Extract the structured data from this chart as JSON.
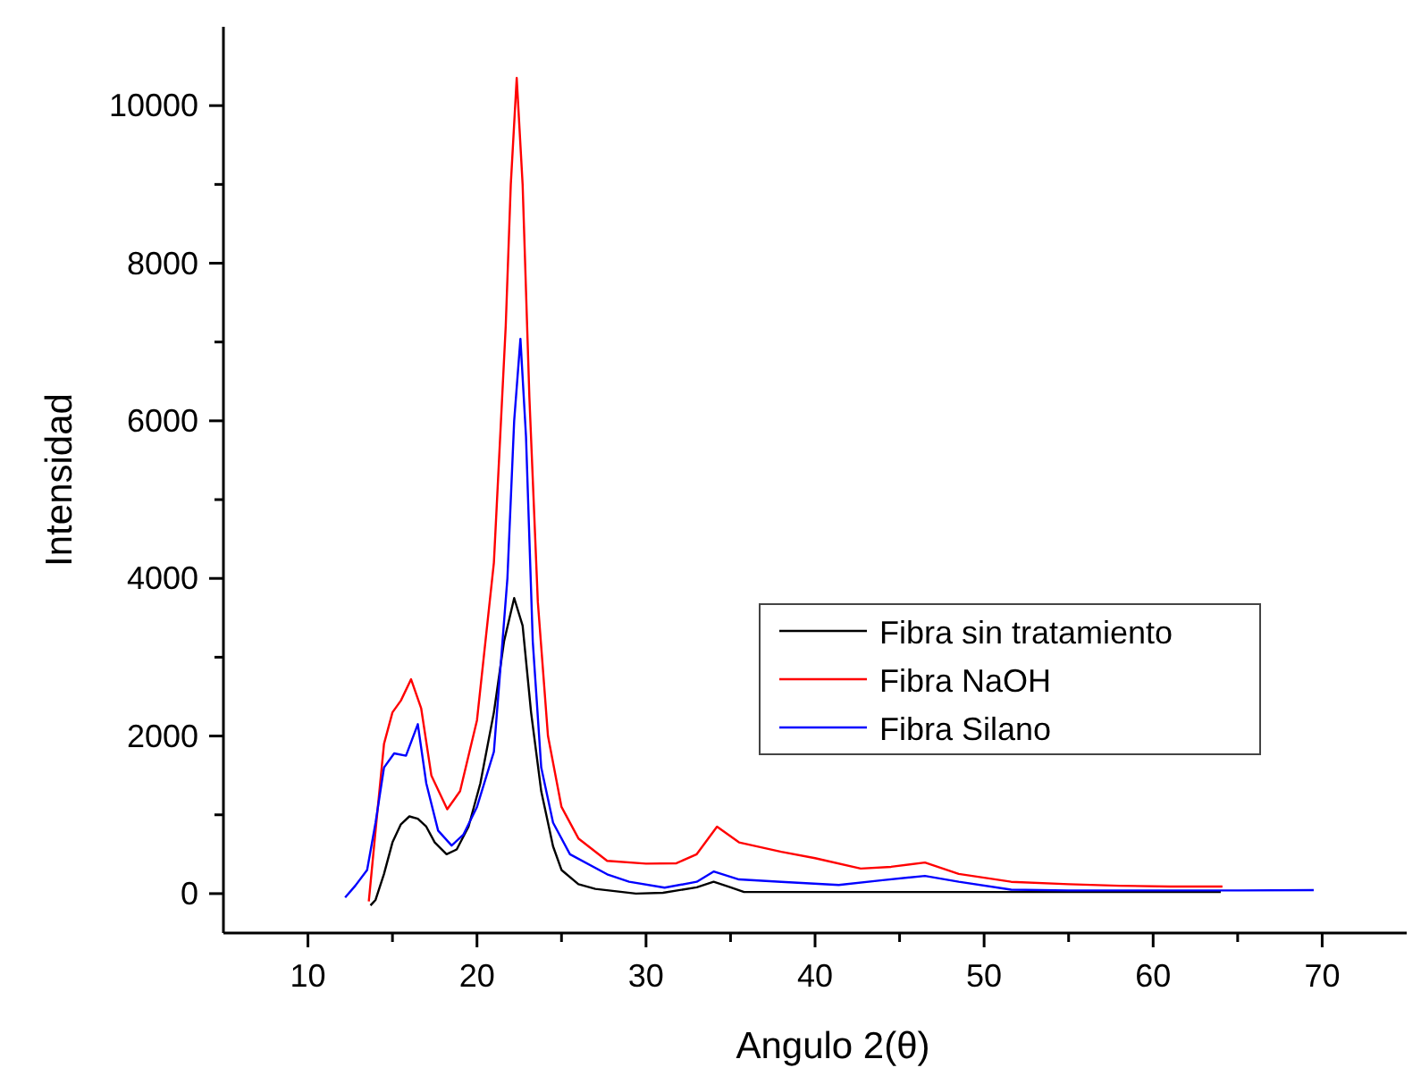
{
  "chart_data": {
    "type": "line",
    "xlabel": "Angulo 2(θ)",
    "ylabel": "Intensidad",
    "xlim": [
      5,
      75
    ],
    "ylim": [
      -500,
      11000
    ],
    "xticks": [
      10,
      {
        "value": 15,
        "label": null
      },
      20,
      {
        "value": 25,
        "label": null
      },
      30,
      {
        "value": 35,
        "label": null
      },
      40,
      {
        "value": 45,
        "label": null
      },
      50,
      {
        "value": 55,
        "label": null
      },
      60,
      {
        "value": 65,
        "label": null
      },
      70
    ],
    "yticks": [
      0,
      {
        "value": 1000,
        "label": null
      },
      2000,
      {
        "value": 3000,
        "label": null
      },
      4000,
      {
        "value": 5000,
        "label": null
      },
      6000,
      {
        "value": 7000,
        "label": null
      },
      8000,
      {
        "value": 9000,
        "label": null
      },
      10000
    ],
    "grid": false,
    "legend": "right",
    "marker": "none",
    "line_style": "solid",
    "series": [
      {
        "name": "Fibra sin tratamiento",
        "color": "#000000",
        "x": [
          13.7,
          14.0,
          14.5,
          15.0,
          15.5,
          16.0,
          16.5,
          17.0,
          17.5,
          18.2,
          18.8,
          19.5,
          20.2,
          21.0,
          21.6,
          22.2,
          22.7,
          23.2,
          23.8,
          24.5,
          25.0,
          26.0,
          27.0,
          29.4,
          31.0,
          33.0,
          34.0,
          35.0,
          35.8,
          40.0,
          45.0,
          50.0,
          55.0,
          60.0,
          64.0
        ],
        "values": [
          -150,
          -80,
          250,
          650,
          880,
          980,
          950,
          850,
          650,
          500,
          560,
          850,
          1400,
          2300,
          3200,
          3750,
          3400,
          2300,
          1300,
          600,
          300,
          120,
          60,
          0,
          10,
          80,
          150,
          80,
          20,
          20,
          20,
          20,
          20,
          20,
          20
        ]
      },
      {
        "name": "Fibra NaOH",
        "color": "#ff0000",
        "x": [
          13.6,
          14.0,
          14.5,
          15.0,
          15.5,
          16.1,
          16.7,
          17.3,
          18.24,
          19.0,
          20.0,
          21.0,
          21.7,
          22.0,
          22.35,
          22.7,
          23.1,
          23.6,
          24.2,
          25.0,
          26.0,
          27.7,
          30.0,
          31.8,
          33.0,
          34.2,
          35.5,
          38.0,
          40.0,
          42.7,
          44.5,
          46.5,
          48.5,
          51.6,
          55.0,
          58.0,
          61.0,
          64.1
        ],
        "values": [
          -100,
          800,
          1900,
          2300,
          2450,
          2720,
          2350,
          1500,
          1070,
          1300,
          2200,
          4200,
          7200,
          9000,
          10350,
          9000,
          6300,
          3700,
          2000,
          1100,
          700,
          415,
          380,
          385,
          500,
          850,
          650,
          530,
          450,
          318,
          340,
          395,
          250,
          150,
          120,
          100,
          90,
          90
        ]
      },
      {
        "name": "Fibra Silano",
        "color": "#0000ff",
        "x": [
          12.2,
          12.8,
          13.5,
          14.0,
          14.5,
          15.1,
          15.8,
          16.5,
          17.0,
          17.7,
          18.5,
          19.2,
          20.0,
          21.0,
          21.8,
          22.2,
          22.57,
          22.9,
          23.3,
          23.8,
          24.5,
          25.5,
          27.7,
          29.0,
          31.1,
          33.0,
          34.0,
          35.5,
          38.0,
          41.4,
          44.0,
          46.5,
          48.5,
          51.6,
          55.0,
          60.0,
          65.0,
          69.5
        ],
        "values": [
          -50,
          100,
          300,
          900,
          1600,
          1780,
          1750,
          2150,
          1400,
          800,
          610,
          750,
          1100,
          1800,
          4000,
          6000,
          7040,
          5800,
          3200,
          1600,
          900,
          500,
          245,
          150,
          75,
          150,
          280,
          180,
          150,
          110,
          170,
          225,
          150,
          50,
          40,
          40,
          40,
          45
        ]
      }
    ]
  }
}
